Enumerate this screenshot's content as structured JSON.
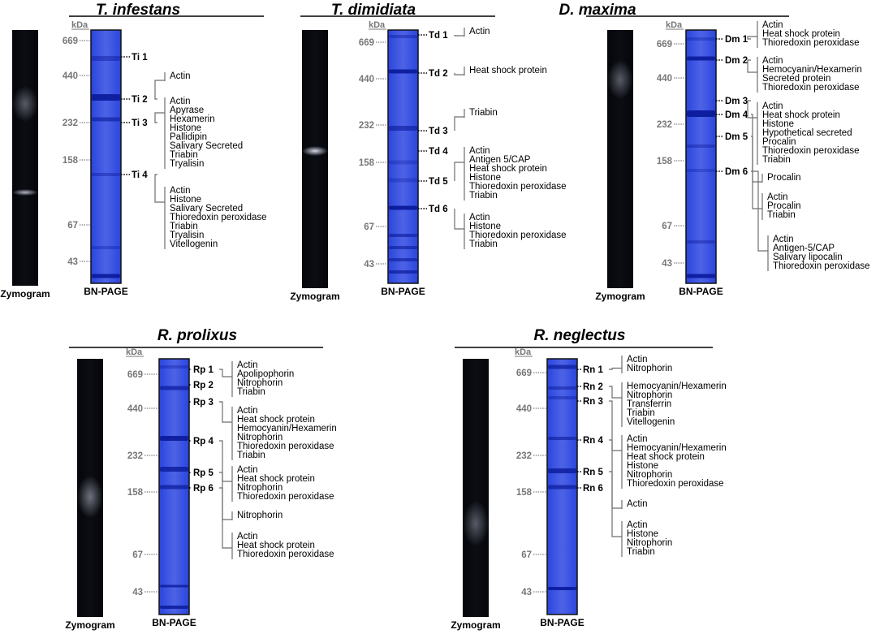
{
  "lane_labels": {
    "zymogram": "Zymogram",
    "bn_page": "BN-PAGE",
    "kda": "kDa"
  },
  "colors": {
    "gel_blue": "#1f3dd6",
    "gel_light": "#7a8cf0",
    "zymogram_bg": "#0b0d14"
  },
  "panels": [
    {
      "id": "ti",
      "species": "T. infestans",
      "markers": [
        "669",
        "440",
        "232",
        "158",
        "67",
        "43"
      ],
      "bands": [
        {
          "label": "Ti 1",
          "proteins": []
        },
        {
          "label": "Ti 2",
          "proteins": [
            "Actin"
          ]
        },
        {
          "label": "Ti 3",
          "proteins": [
            "Actin",
            "Apyrase",
            "Hexamerin",
            "Histone",
            "Pallidipin",
            "Salivary Secreted",
            "Triabin",
            "Tryalisin"
          ]
        },
        {
          "label": "Ti 4",
          "proteins": [
            "Actin",
            "Histone",
            "Salivary Secreted",
            "Thioredoxin peroxidase",
            "Triabin",
            "Tryalisin",
            "Vitellogenin"
          ]
        }
      ]
    },
    {
      "id": "td",
      "species": "T. dimidiata",
      "markers": [
        "669",
        "440",
        "232",
        "158",
        "67",
        "43"
      ],
      "bands": [
        {
          "label": "Td 1",
          "proteins": [
            "Actin"
          ]
        },
        {
          "label": "Td 2",
          "proteins": [
            "Heat shock protein"
          ]
        },
        {
          "label": "Td 3",
          "proteins": [
            "Triabin"
          ]
        },
        {
          "label": "Td 4",
          "proteins": []
        },
        {
          "label": "Td 5",
          "proteins": [
            "Actin",
            "Antigen 5/CAP",
            "Heat shock protein",
            "Histone",
            "Thioredoxin peroxidase",
            "Triabin"
          ]
        },
        {
          "label": "Td 6",
          "proteins": [
            "Actin",
            "Histone",
            "Thioredoxin peroxidase",
            "Triabin"
          ]
        }
      ]
    },
    {
      "id": "dm",
      "species": "D. maxima",
      "markers": [
        "669",
        "440",
        "232",
        "158",
        "67",
        "43"
      ],
      "bands": [
        {
          "label": "Dm 1",
          "proteins": [
            "Actin",
            "Heat shock protein",
            "Thioredoxin peroxidase"
          ]
        },
        {
          "label": "Dm 2",
          "proteins": [
            "Actin",
            "Hemocyanin/Hexamerin",
            "Secreted protein",
            "Thioredoxin peroxidase"
          ]
        },
        {
          "label": "Dm 3",
          "proteins": [
            "Actin",
            "Heat shock protein",
            "Histone",
            "Hypothetical secreted",
            "Procalin",
            "Thioredoxin peroxidase",
            "Triabin"
          ]
        },
        {
          "label": "Dm 4",
          "proteins": [
            "Procalin"
          ]
        },
        {
          "label": "Dm 5",
          "proteins": [
            "Actin",
            "Procalin",
            "Triabin"
          ]
        },
        {
          "label": "Dm 6",
          "proteins": [
            "Actin",
            "Antigen-5/CAP",
            "Salivary lipocalin",
            "Thioredoxin peroxidase"
          ]
        }
      ]
    },
    {
      "id": "rp",
      "species": "R. prolixus",
      "markers": [
        "669",
        "440",
        "232",
        "158",
        "67",
        "43"
      ],
      "bands": [
        {
          "label": "Rp 1",
          "proteins": [
            "Actin",
            "Apolipophorin",
            "Nitrophorin",
            "Triabin"
          ]
        },
        {
          "label": "Rp 2",
          "proteins": []
        },
        {
          "label": "Rp 3",
          "proteins": [
            "Actin",
            "Heat shock protein",
            "Hemocyanin/Hexamerin",
            "Nitrophorin",
            "Thioredoxin peroxidase",
            "Triabin"
          ]
        },
        {
          "label": "Rp 4",
          "proteins": [
            "Actin",
            "Heat shock protein",
            "Nitrophorin",
            "Thioredoxin peroxidase"
          ]
        },
        {
          "label": "Rp 5",
          "proteins": [
            "Nitrophorin"
          ]
        },
        {
          "label": "Rp 6",
          "proteins": [
            "Actin",
            "Heat shock protein",
            "Thioredoxin peroxidase"
          ]
        }
      ]
    },
    {
      "id": "rn",
      "species": "R. neglectus",
      "markers": [
        "669",
        "440",
        "232",
        "158",
        "67",
        "43"
      ],
      "bands": [
        {
          "label": "Rn 1",
          "proteins": [
            "Actin",
            "Nitrophorin"
          ]
        },
        {
          "label": "Rn 2",
          "proteins": [
            "Hemocyanin/Hexamerin",
            "Nitrophorin",
            "Transferrin",
            "Triabin",
            "Vitellogenin"
          ]
        },
        {
          "label": "Rn 3",
          "proteins": [
            "Actin",
            "Hemocyanin/Hexamerin",
            "Heat shock protein",
            "Histone",
            "Nitrophorin",
            "Thioredoxin peroxidase"
          ]
        },
        {
          "label": "Rn 4",
          "proteins": [
            "Actin"
          ]
        },
        {
          "label": "Rn 5",
          "proteins": [
            "Actin",
            "Histone",
            "Nitrophorin",
            "Triabin"
          ]
        },
        {
          "label": "Rn 6",
          "proteins": []
        }
      ]
    }
  ]
}
